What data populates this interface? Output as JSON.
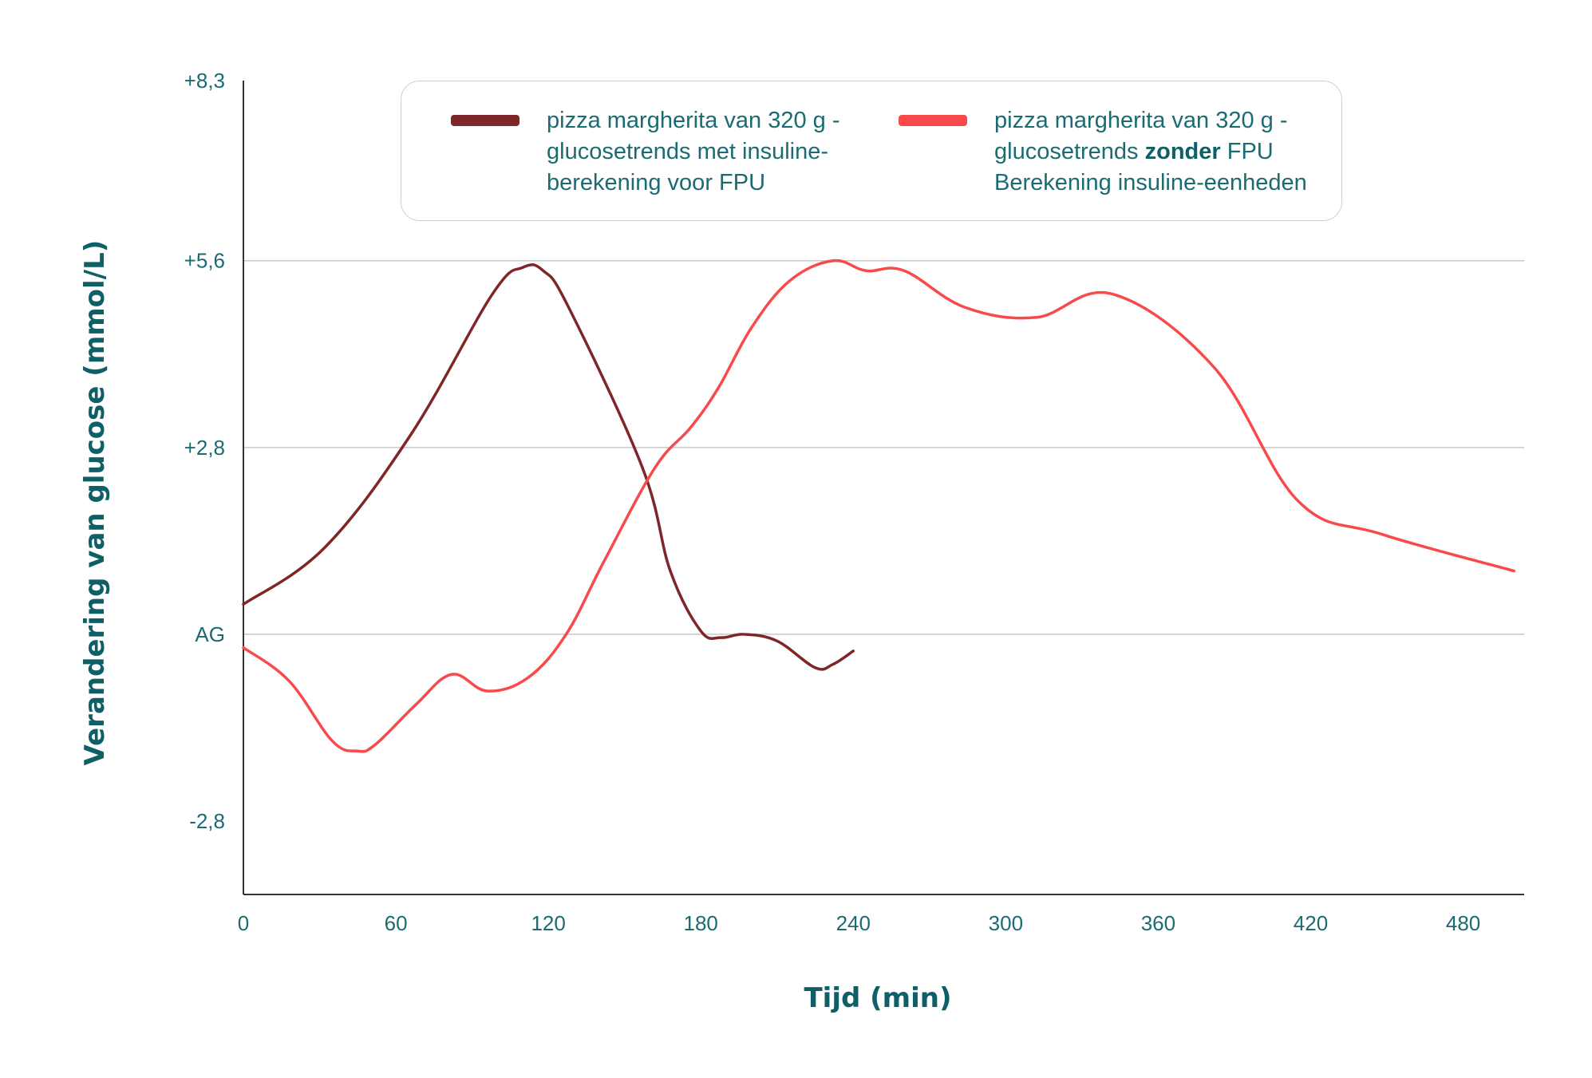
{
  "chart_data": {
    "type": "line",
    "xlabel": "Tijd (min)",
    "ylabel": "Verandering van glucose (mmol/L)",
    "xlim": [
      0,
      504
    ],
    "ylim": [
      -3.9,
      8.3
    ],
    "x_ticks": [
      0,
      60,
      120,
      180,
      240,
      300,
      360,
      420,
      480
    ],
    "x_tick_labels": [
      "0",
      "60",
      "120",
      "180",
      "240",
      "300",
      "360",
      "420",
      "480"
    ],
    "y_ticks": [
      8.3,
      5.6,
      2.8,
      0,
      -2.8
    ],
    "y_tick_labels": [
      "+8,3",
      "+5,6",
      "+2,8",
      "AG",
      "-2,8"
    ],
    "grid": "horizontal",
    "legend_position": "top",
    "series": [
      {
        "name": "pizza margherita van 320 g - glucosetrends met insuline-berekening voor FPU",
        "name_lines": [
          "pizza margherita van 320 g -",
          "glucosetrends met insuline-",
          "berekening voor FPU"
        ],
        "color": "#7f2628",
        "x": [
          0,
          32,
          66,
          98,
          110,
          118,
          128,
          157,
          168,
          180,
          188,
          197,
          210,
          225,
          232,
          240
        ],
        "y": [
          0.45,
          1.3,
          3.0,
          5.1,
          5.5,
          5.45,
          4.9,
          2.5,
          0.95,
          0.05,
          -0.05,
          0.0,
          -0.1,
          -0.5,
          -0.45,
          -0.25
        ]
      },
      {
        "name": "pizza margherita van 320 g - glucosetrends zonder FPU Berekening insuline-eenheden",
        "name_lines": [
          "pizza margherita van 320 g -",
          "glucosetrends ",
          "zonder",
          " FPU",
          "Berekening insuline-eenheden"
        ],
        "color": "#f84a4a",
        "x": [
          0,
          18,
          35,
          45,
          52,
          68,
          82,
          96,
          112,
          127,
          142,
          162,
          176,
          187,
          200,
          215,
          232,
          245,
          260,
          284,
          312,
          342,
          382,
          415,
          448,
          500
        ],
        "y": [
          -0.2,
          -0.7,
          -1.6,
          -1.75,
          -1.65,
          -1.05,
          -0.6,
          -0.85,
          -0.65,
          0.0,
          1.1,
          2.5,
          3.1,
          3.7,
          4.6,
          5.3,
          5.6,
          5.45,
          5.45,
          4.9,
          4.75,
          5.1,
          4.0,
          2.0,
          1.5,
          0.95
        ]
      }
    ]
  }
}
